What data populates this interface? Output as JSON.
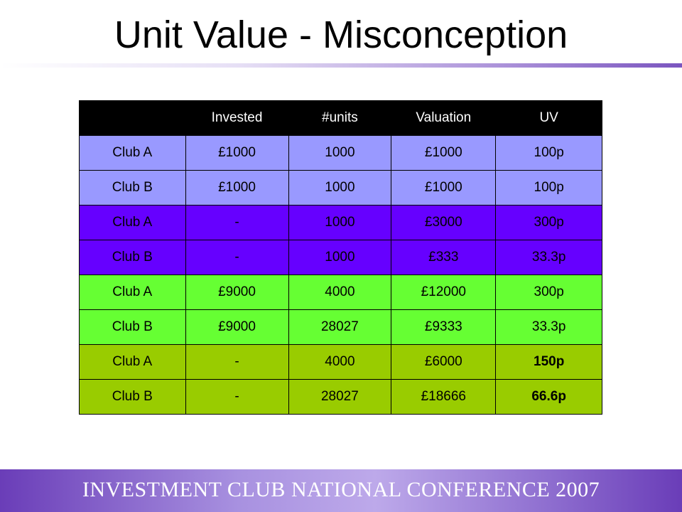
{
  "slide": {
    "title": "Unit Value - Misconception",
    "footer": "INVESTMENT CLUB NATIONAL CONFERENCE 2007"
  },
  "table": {
    "headers": [
      "",
      "Invested",
      "#units",
      "Valuation",
      "UV"
    ],
    "rows": [
      [
        "Club A",
        "£1000",
        "1000",
        "£1000",
        "100p"
      ],
      [
        "Club B",
        "£1000",
        "1000",
        "£1000",
        "100p"
      ],
      [
        "Club A",
        "-",
        "1000",
        "£3000",
        "300p"
      ],
      [
        "Club B",
        "-",
        "1000",
        "£333",
        "33.3p"
      ],
      [
        "Club A",
        "£9000",
        "4000",
        "£12000",
        "300p"
      ],
      [
        "Club B",
        "£9000",
        "28027",
        "£9333",
        "33.3p"
      ],
      [
        "Club A",
        "-",
        "4000",
        "£6000",
        "150p"
      ],
      [
        "Club B",
        "-",
        "28027",
        "£18666",
        "66.6p"
      ]
    ]
  },
  "colors": {
    "group1": "#9999ff",
    "group2": "#6600ff",
    "group3": "#66ff33",
    "group4": "#99cc00",
    "header": "#000000"
  }
}
